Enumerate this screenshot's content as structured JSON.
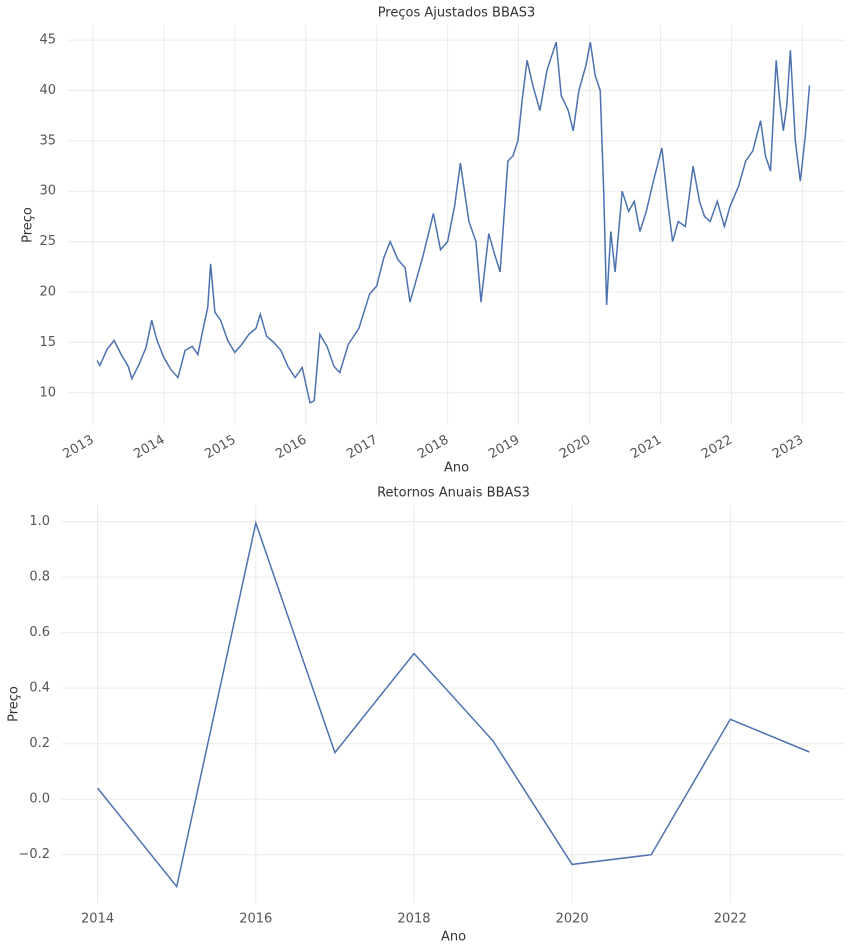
{
  "chart_data": [
    {
      "type": "line",
      "title": "Preços Ajustados BBAS3",
      "xlabel": "Ano",
      "ylabel": "Preço",
      "x": [
        2013.06,
        2013.1,
        2013.2,
        2013.3,
        2013.4,
        2013.5,
        2013.55,
        2013.65,
        2013.75,
        2013.83,
        2013.9,
        2014.0,
        2014.1,
        2014.2,
        2014.3,
        2014.4,
        2014.48,
        2014.55,
        2014.62,
        2014.66,
        2014.72,
        2014.8,
        2014.9,
        2015.0,
        2015.1,
        2015.2,
        2015.3,
        2015.36,
        2015.45,
        2015.55,
        2015.65,
        2015.75,
        2015.85,
        2015.95,
        2016.06,
        2016.12,
        2016.2,
        2016.3,
        2016.4,
        2016.48,
        2016.6,
        2016.75,
        2016.9,
        2017.0,
        2017.1,
        2017.19,
        2017.3,
        2017.4,
        2017.47,
        2017.55,
        2017.65,
        2017.8,
        2017.9,
        2018.0,
        2018.1,
        2018.18,
        2018.3,
        2018.4,
        2018.47,
        2018.58,
        2018.65,
        2018.74,
        2018.85,
        2018.92,
        2018.99,
        2019.05,
        2019.12,
        2019.2,
        2019.3,
        2019.4,
        2019.53,
        2019.6,
        2019.7,
        2019.77,
        2019.85,
        2019.95,
        2020.01,
        2020.08,
        2020.15,
        2020.2,
        2020.24,
        2020.3,
        2020.36,
        2020.46,
        2020.55,
        2020.63,
        2020.71,
        2020.8,
        2020.9,
        2021.02,
        2021.1,
        2021.17,
        2021.25,
        2021.35,
        2021.46,
        2021.55,
        2021.62,
        2021.7,
        2021.8,
        2021.9,
        2021.98,
        2022.1,
        2022.2,
        2022.3,
        2022.41,
        2022.48,
        2022.55,
        2022.63,
        2022.68,
        2022.73,
        2022.78,
        2022.83,
        2022.9,
        2022.97,
        2023.04,
        2023.1
      ],
      "series": [
        {
          "name": "BBAS3",
          "color": "#4c72b0",
          "values": [
            13.2,
            12.7,
            14.3,
            15.2,
            13.8,
            12.6,
            11.4,
            12.8,
            14.5,
            17.2,
            15.3,
            13.5,
            12.3,
            11.5,
            14.2,
            14.6,
            13.8,
            16.2,
            18.5,
            22.8,
            18.0,
            17.2,
            15.2,
            14.0,
            14.8,
            15.8,
            16.4,
            17.8,
            15.6,
            15.0,
            14.2,
            12.6,
            11.5,
            12.5,
            9.0,
            9.2,
            15.8,
            14.6,
            12.6,
            12.0,
            14.8,
            16.4,
            19.8,
            20.6,
            23.4,
            25.0,
            23.2,
            22.4,
            19.0,
            21.0,
            23.5,
            27.8,
            24.2,
            25.0,
            28.6,
            32.8,
            27.0,
            25.0,
            19.0,
            25.8,
            24.0,
            22.0,
            33.0,
            33.5,
            35.0,
            39.0,
            43.0,
            40.5,
            38.0,
            42.0,
            44.8,
            39.5,
            38.0,
            36.0,
            40.0,
            42.5,
            44.8,
            41.5,
            40.0,
            30.0,
            18.7,
            26.0,
            22.0,
            30.0,
            28.0,
            29.0,
            26.0,
            28.0,
            31.0,
            34.3,
            29.0,
            25.0,
            27.0,
            26.5,
            32.5,
            29.0,
            27.5,
            27.0,
            29.0,
            26.5,
            28.5,
            30.5,
            33.0,
            34.0,
            37.0,
            33.5,
            32.0,
            43.0,
            39.0,
            36.0,
            38.5,
            44.0,
            35.0,
            31.0,
            35.5,
            40.5
          ]
        }
      ],
      "xlim": [
        2012.65,
        2023.6
      ],
      "xticks": [
        2013,
        2014,
        2015,
        2016,
        2017,
        2018,
        2019,
        2020,
        2021,
        2022,
        2023
      ],
      "ylim": [
        6.8,
        46.5
      ],
      "yticks": [
        10,
        15,
        20,
        25,
        30,
        35,
        40,
        45
      ],
      "grid": true
    },
    {
      "type": "line",
      "title": "Retornos Anuais BBAS3",
      "xlabel": "Ano",
      "ylabel": "Preço",
      "x": [
        2014,
        2015,
        2016,
        2017,
        2018,
        2019,
        2020,
        2021,
        2022,
        2023
      ],
      "series": [
        {
          "name": "BBAS3",
          "color": "#4c72b0",
          "values": [
            0.04,
            -0.315,
            0.995,
            0.168,
            0.525,
            0.21,
            -0.235,
            -0.2,
            0.288,
            0.17
          ]
        }
      ],
      "xlim": [
        2013.55,
        2023.45
      ],
      "xticks": [
        2014,
        2016,
        2018,
        2020,
        2022
      ],
      "ylim": [
        -0.374,
        1.06
      ],
      "yticks": [
        {
          "value": -0.2,
          "label": "−0.2"
        },
        {
          "value": 0,
          "label": "0.0"
        },
        0.2,
        0.4,
        0.6,
        0.8,
        {
          "value": 1,
          "label": "1.0"
        }
      ],
      "grid": true
    }
  ]
}
